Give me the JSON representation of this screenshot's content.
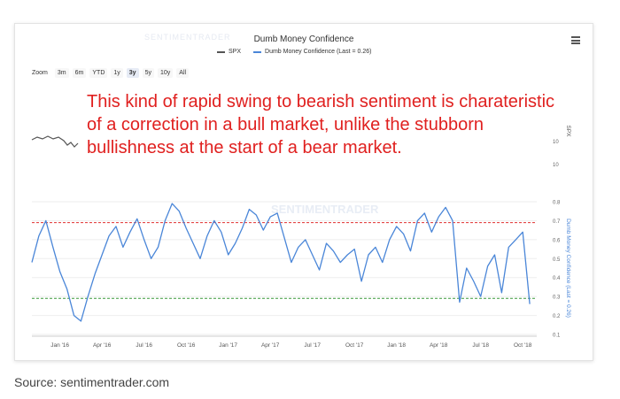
{
  "card": {
    "title": "Dumb Money Confidence",
    "watermark_top": "SENTIMENTRADER",
    "menu_icon": "hamburger-menu-icon"
  },
  "legend": [
    {
      "label": "SPX",
      "color": "#555555"
    },
    {
      "label": "Dumb Money Confidence (Last = 0.26)",
      "color": "#4a86d8"
    }
  ],
  "zoom": {
    "label": "Zoom",
    "buttons": [
      "3m",
      "6m",
      "YTD",
      "1y",
      "3y",
      "5y",
      "10y",
      "All"
    ],
    "selected": "3y"
  },
  "annotation": "This kind of rapid swing to bearish sentiment is charateristic of a correction in a bull market, unlike the stubborn bullishness at the start of a bear market.",
  "source": "Source: sentimentrader.com",
  "chart_data": {
    "type": "line",
    "title": "Dumb Money Confidence",
    "x_labels": [
      "Jan '16",
      "Apr '16",
      "Jul '16",
      "Oct '16",
      "Jan '17",
      "Apr '17",
      "Jul '17",
      "Oct '17",
      "Jan '18",
      "Apr '18",
      "Jul '18",
      "Oct '18"
    ],
    "xlim": [
      "Nov '15",
      "Oct '18"
    ],
    "y_right_axis": {
      "label": "Dumb Money Confidence (Last = 0.26)",
      "ticks": [
        0.1,
        0.2,
        0.3,
        0.4,
        0.5,
        0.6,
        0.7,
        0.8
      ],
      "ylim": [
        0.1,
        0.8
      ]
    },
    "spx_axis_label": "SPX",
    "spx_axis_tick": "10",
    "reference_lines": [
      {
        "value": 0.69,
        "color": "#e03030",
        "style": "dashed"
      },
      {
        "value": 0.29,
        "color": "#3a9a3a",
        "style": "dashed"
      }
    ],
    "series": [
      {
        "name": "Dumb Money Confidence (Last = 0.26)",
        "color": "#4a86d8",
        "x_month": [
          0,
          0.5,
          1,
          1.5,
          2,
          2.5,
          3,
          3.5,
          4,
          4.5,
          5,
          5.5,
          6,
          6.5,
          7,
          7.5,
          8,
          8.5,
          9,
          9.5,
          10,
          10.5,
          11,
          11.5,
          12,
          12.5,
          13,
          13.5,
          14,
          14.5,
          15,
          15.5,
          16,
          16.5,
          17,
          17.5,
          18,
          18.5,
          19,
          19.5,
          20,
          20.5,
          21,
          21.5,
          22,
          22.5,
          23,
          23.5,
          24,
          24.5,
          25,
          25.5,
          26,
          26.5,
          27,
          27.5,
          28,
          28.5,
          29,
          29.5,
          30,
          30.5,
          31,
          31.5,
          32,
          32.5,
          33,
          33.5,
          34,
          34.5,
          35,
          35.5
        ],
        "values": [
          0.48,
          0.62,
          0.7,
          0.56,
          0.43,
          0.34,
          0.2,
          0.17,
          0.3,
          0.42,
          0.52,
          0.62,
          0.67,
          0.56,
          0.64,
          0.71,
          0.6,
          0.5,
          0.56,
          0.7,
          0.79,
          0.75,
          0.66,
          0.58,
          0.5,
          0.62,
          0.7,
          0.64,
          0.52,
          0.58,
          0.66,
          0.76,
          0.73,
          0.65,
          0.72,
          0.74,
          0.61,
          0.48,
          0.56,
          0.6,
          0.52,
          0.44,
          0.58,
          0.54,
          0.48,
          0.52,
          0.55,
          0.38,
          0.52,
          0.56,
          0.48,
          0.6,
          0.67,
          0.63,
          0.54,
          0.7,
          0.74,
          0.64,
          0.72,
          0.77,
          0.7,
          0.27,
          0.45,
          0.38,
          0.3,
          0.46,
          0.52,
          0.32,
          0.56,
          0.6,
          0.64,
          0.26
        ]
      }
    ]
  }
}
